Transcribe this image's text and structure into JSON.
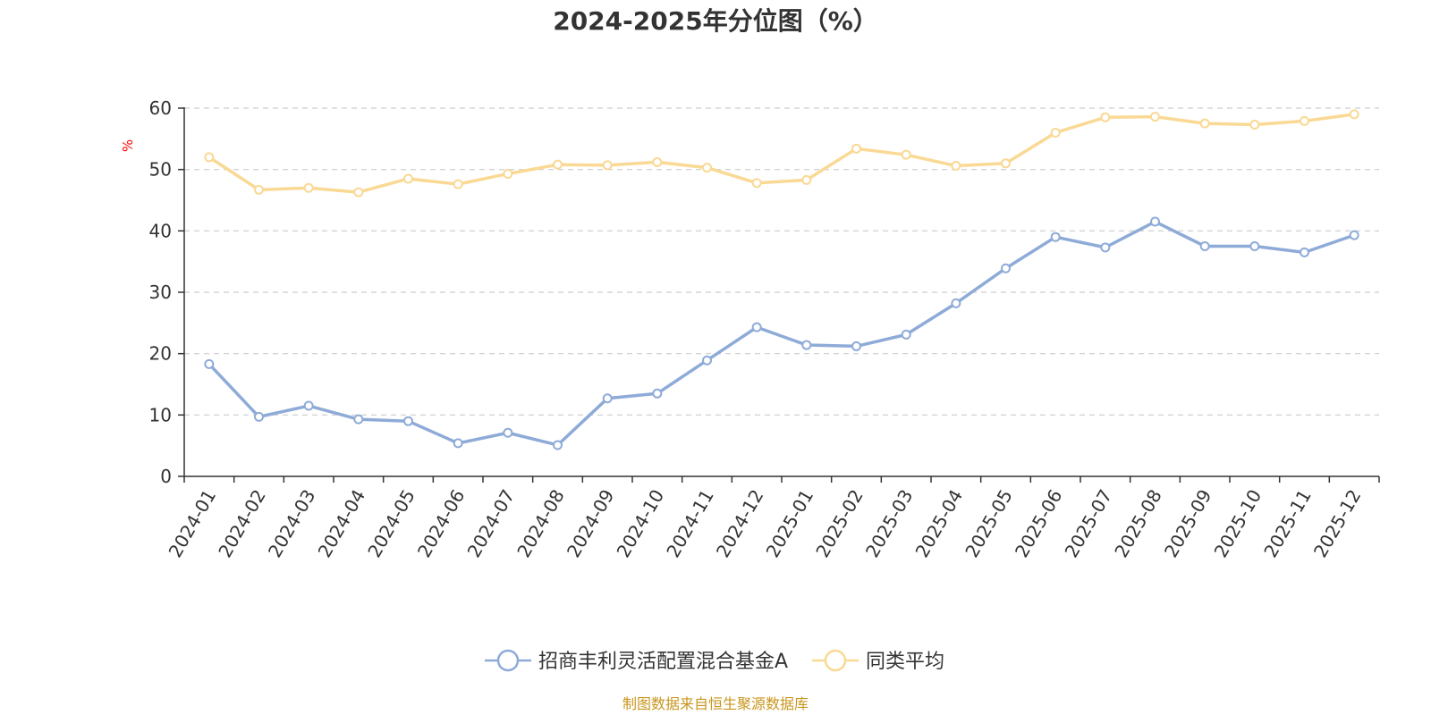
{
  "chart_data": {
    "type": "line",
    "title": "2024-2025年分位图（%）",
    "ylabel": "%",
    "xlabel": "",
    "ylim": [
      0,
      60
    ],
    "yticks": [
      0,
      10,
      20,
      30,
      40,
      50,
      60
    ],
    "grid": true,
    "legend_position": "bottom-center",
    "categories": [
      "2024-01",
      "2024-02",
      "2024-03",
      "2024-04",
      "2024-05",
      "2024-06",
      "2024-07",
      "2024-08",
      "2024-09",
      "2024-10",
      "2024-11",
      "2024-12",
      "2025-01",
      "2025-02",
      "2025-03",
      "2025-04",
      "2025-05",
      "2025-06",
      "2025-07",
      "2025-08",
      "2025-09",
      "2025-10",
      "2025-11",
      "2025-12"
    ],
    "series": [
      {
        "name": "招商丰利灵活配置混合基金A",
        "color": "#8eabd8",
        "values": [
          18.3,
          9.7,
          11.5,
          9.3,
          9.0,
          5.4,
          7.1,
          5.1,
          12.7,
          13.5,
          18.9,
          24.3,
          21.4,
          21.2,
          23.1,
          28.2,
          33.9,
          39.0,
          37.3,
          41.5,
          37.5,
          37.5,
          36.5,
          39.3
        ]
      },
      {
        "name": "同类平均",
        "color": "#f9d994",
        "values": [
          52.0,
          46.7,
          47.0,
          46.3,
          48.5,
          47.6,
          49.3,
          50.8,
          50.7,
          51.2,
          50.3,
          47.8,
          48.3,
          53.4,
          52.4,
          50.6,
          51.0,
          56.0,
          58.5,
          58.6,
          57.5,
          57.3,
          57.9,
          59.0
        ]
      }
    ]
  },
  "footer": {
    "source": "制图数据来自恒生聚源数据库"
  }
}
